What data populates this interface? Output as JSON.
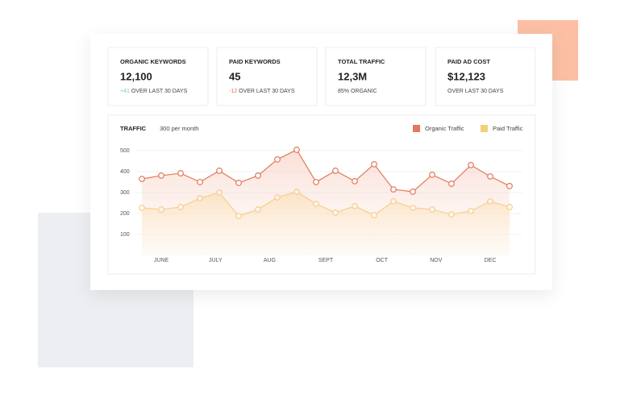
{
  "cards": [
    {
      "title": "ORGANIC KEYWORDS",
      "value": "12,100",
      "delta": "+41",
      "note": "OVER LAST 30 DAYS"
    },
    {
      "title": "PAID KEYWORDS",
      "value": "45",
      "delta": "-12",
      "note": "OVER LAST 30 DAYS"
    },
    {
      "title": "TOTAL TRAFFIC",
      "value": "12,3M",
      "note": "85% ORGANIC"
    },
    {
      "title": "PAID AD COST",
      "value": "$12,123",
      "note": "OVER LAST 30 DAYS"
    }
  ],
  "chart_data": {
    "type": "line",
    "title": "TRAFFIC",
    "subtitle": "300 per month",
    "x": [
      0,
      1,
      2,
      3,
      4,
      5,
      6,
      7,
      8,
      9,
      10,
      11,
      12,
      13,
      14,
      15,
      16,
      17,
      18,
      19
    ],
    "xlim": [
      0,
      19
    ],
    "xticks": [
      {
        "value": 1,
        "label": "JUNE"
      },
      {
        "value": 3.8,
        "label": "JULY"
      },
      {
        "value": 6.6,
        "label": "AUG"
      },
      {
        "value": 9.5,
        "label": "SEPT"
      },
      {
        "value": 12.4,
        "label": "OCT"
      },
      {
        "value": 15.2,
        "label": "NOV"
      },
      {
        "value": 18,
        "label": "DEC"
      }
    ],
    "ylim": [
      0,
      520
    ],
    "yticks": [
      100,
      200,
      300,
      400,
      500
    ],
    "series": [
      {
        "name": "Organic Traffic",
        "color": "#e07a5a",
        "values": [
          365,
          381,
          392,
          350,
          404,
          346,
          381,
          458,
          504,
          350,
          404,
          354,
          435,
          315,
          304,
          385,
          342,
          431,
          377,
          331
        ]
      },
      {
        "name": "Paid Traffic",
        "color": "#f5cf7a",
        "values": [
          227,
          219,
          231,
          273,
          300,
          188,
          219,
          277,
          304,
          246,
          204,
          235,
          192,
          258,
          227,
          219,
          196,
          212,
          258,
          231
        ]
      }
    ],
    "legend": "top-right",
    "grid": true
  }
}
